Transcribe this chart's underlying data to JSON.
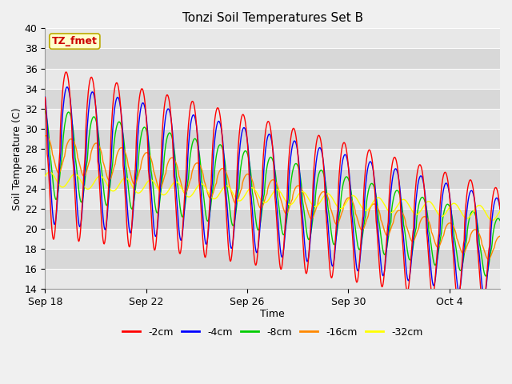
{
  "title": "Tonzi Soil Temperatures Set B",
  "xlabel": "Time",
  "ylabel": "Soil Temperature (C)",
  "ylim": [
    14,
    40
  ],
  "yticks": [
    14,
    16,
    18,
    20,
    22,
    24,
    26,
    28,
    30,
    32,
    34,
    36,
    38,
    40
  ],
  "legend_label": "TZ_fmet",
  "series_labels": [
    "-2cm",
    "-4cm",
    "-8cm",
    "-16cm",
    "-32cm"
  ],
  "series_colors": [
    "#ff0000",
    "#0000ff",
    "#00cc00",
    "#ff8800",
    "#ffff00"
  ],
  "background_color": "#f0f0f0",
  "band_colors": [
    "#e8e8e8",
    "#d8d8d8"
  ],
  "title_fontsize": 11,
  "axis_fontsize": 9,
  "tick_fontsize": 9,
  "legend_fontsize": 9,
  "xtick_labels": [
    "Sep 18",
    "Sep 22",
    "Sep 26",
    "Sep 30",
    "Oct 4"
  ],
  "xtick_positions": [
    0,
    4,
    8,
    12,
    16
  ],
  "n_days": 18,
  "pts_per_day": 48
}
